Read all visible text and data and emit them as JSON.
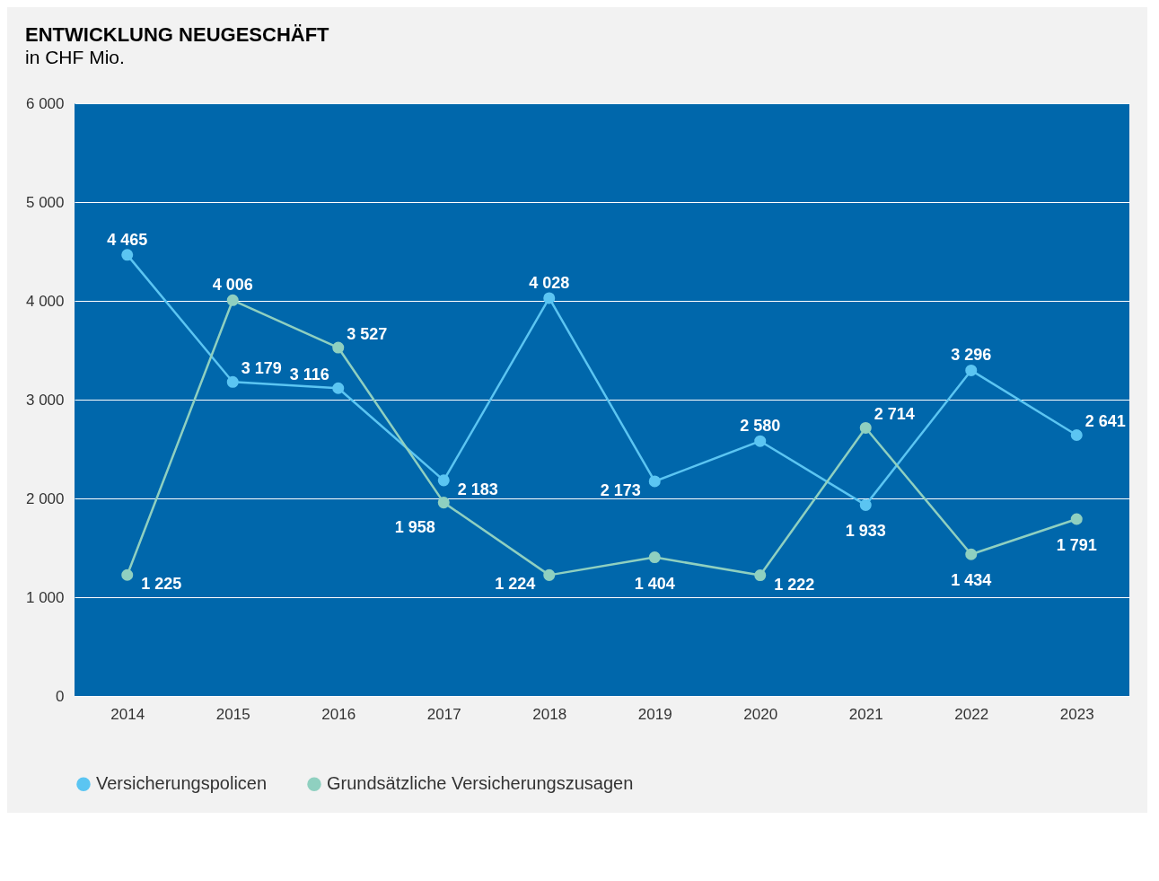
{
  "chart_data": {
    "type": "line",
    "title": "ENTWICKLUNG NEUGESCHÄFT",
    "subtitle": "in CHF Mio.",
    "categories": [
      "2014",
      "2015",
      "2016",
      "2017",
      "2018",
      "2019",
      "2020",
      "2021",
      "2022",
      "2023"
    ],
    "series": [
      {
        "name": "Versicherungspolicen",
        "color": "#5bc5f2",
        "values": [
          4465,
          3179,
          3116,
          2183,
          4028,
          2173,
          2580,
          1933,
          3296,
          2641
        ],
        "value_labels": [
          "4 465",
          "3 179",
          "3 116",
          "2 183",
          "4 028",
          "2 173",
          "2 580",
          "1 933",
          "3 296",
          "2 641"
        ]
      },
      {
        "name": "Grundsätzliche Versicherungszusagen",
        "color": "#8fd0c0",
        "values": [
          1225,
          4006,
          3527,
          1958,
          1224,
          1404,
          1222,
          2714,
          1434,
          1791
        ],
        "value_labels": [
          "1 225",
          "4 006",
          "3 527",
          "1 958",
          "1 224",
          "1 404",
          "1 222",
          "2 714",
          "1 434",
          "1 791"
        ]
      }
    ],
    "ylim": [
      0,
      6000
    ],
    "yticks": [
      0,
      {
        "value": 1000,
        "label": "1 000"
      },
      {
        "value": 2000,
        "label": "2 000"
      },
      {
        "value": 3000,
        "label": "3 000"
      },
      {
        "value": 4000,
        "label": "4 000"
      },
      {
        "value": 5000,
        "label": "5 000"
      },
      {
        "value": 6000,
        "label": "6 000"
      }
    ],
    "grid": "y",
    "legend": "bottom",
    "marker": "circle",
    "line_style": "solid"
  }
}
